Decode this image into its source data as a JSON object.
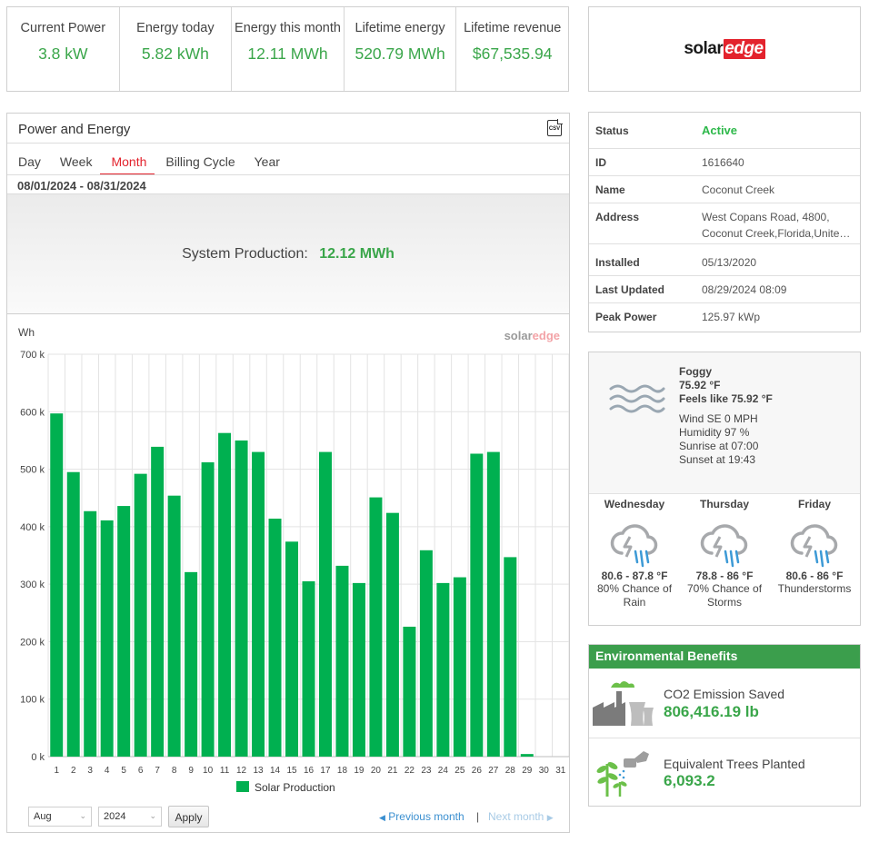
{
  "kpis": [
    {
      "label": "Current Power",
      "value": "3.8 kW"
    },
    {
      "label": "Energy today",
      "value": "5.82 kWh"
    },
    {
      "label": "Energy this month",
      "value": "12.11 MWh"
    },
    {
      "label": "Lifetime energy",
      "value": "520.79 MWh"
    },
    {
      "label": "Lifetime revenue",
      "value": "$67,535.94"
    }
  ],
  "logo": {
    "part1": "solar",
    "part2": "edge"
  },
  "power_energy": {
    "title": "Power and Energy",
    "csv_label": "CSV",
    "tabs": [
      {
        "label": "Day",
        "active": false
      },
      {
        "label": "Week",
        "active": false
      },
      {
        "label": "Month",
        "active": true
      },
      {
        "label": "Billing Cycle",
        "active": false
      },
      {
        "label": "Year",
        "active": false
      }
    ],
    "date_range": "08/01/2024 - 08/31/2024",
    "production_label": "System Production:",
    "production_value": "12.12 MWh",
    "month_select": "Aug",
    "year_select": "2024",
    "apply_label": "Apply",
    "prev_label": "Previous month",
    "separator": "|",
    "next_label": "Next month"
  },
  "chart_data": {
    "type": "bar",
    "ylabel": "Wh",
    "ylim": [
      0,
      700000
    ],
    "yticks": [
      0,
      100000,
      200000,
      300000,
      400000,
      500000,
      600000,
      700000
    ],
    "ytick_labels": [
      "0 k",
      "100 k",
      "200 k",
      "300 k",
      "400 k",
      "500 k",
      "600 k",
      "700 k"
    ],
    "categories": [
      "1",
      "2",
      "3",
      "4",
      "5",
      "6",
      "7",
      "8",
      "9",
      "10",
      "11",
      "12",
      "13",
      "14",
      "15",
      "16",
      "17",
      "18",
      "19",
      "20",
      "21",
      "22",
      "23",
      "24",
      "25",
      "26",
      "27",
      "28",
      "29",
      "30",
      "31"
    ],
    "series": [
      {
        "name": "Solar Production",
        "color": "#00b050",
        "values": [
          597000,
          495000,
          427000,
          411000,
          436000,
          492000,
          539000,
          454000,
          321000,
          512000,
          563000,
          550000,
          530000,
          414000,
          374000,
          305000,
          530000,
          332000,
          302000,
          451000,
          424000,
          226000,
          359000,
          302000,
          312000,
          527000,
          530000,
          347000,
          4500,
          0,
          0
        ]
      }
    ],
    "grid": true,
    "legend": "bottom-center",
    "watermark": {
      "part1": "solar",
      "part2": "edge"
    }
  },
  "site_info": [
    {
      "key": "Status",
      "value": "Active"
    },
    {
      "key": "ID",
      "value": "1616640"
    },
    {
      "key": "Name",
      "value": "Coconut Creek"
    },
    {
      "key": "Address",
      "value": "West Copans Road, 4800,",
      "value2": "Coconut Creek,Florida,Unite…"
    },
    {
      "key": "Installed",
      "value": "05/13/2020"
    },
    {
      "key": "Last Updated",
      "value": "08/29/2024 08:09"
    },
    {
      "key": "Peak Power",
      "value": "125.97 kWp"
    }
  ],
  "weather": {
    "icon": "fog-icon",
    "condition": "Foggy",
    "temp": "75.92 °F",
    "feels_like": "Feels like 75.92 °F",
    "wind": "Wind SE 0 MPH",
    "humidity": "Humidity 97 %",
    "sunrise": "Sunrise at 07:00",
    "sunset": "Sunset at 19:43",
    "forecast": [
      {
        "day": "Wednesday",
        "icon": "thunder-rain-icon",
        "temp": "80.6 - 87.8 °F",
        "desc1": "80% Chance of",
        "desc2": "Rain"
      },
      {
        "day": "Thursday",
        "icon": "thunder-rain-icon",
        "temp": "78.8 - 86 °F",
        "desc1": "70% Chance of",
        "desc2": "Storms"
      },
      {
        "day": "Friday",
        "icon": "thunder-rain-icon",
        "temp": "80.6 - 86 °F",
        "desc1": "Thunderstorms",
        "desc2": ""
      }
    ]
  },
  "env": {
    "title": "Environmental Benefits",
    "co2_label": "CO2 Emission Saved",
    "co2_value": "806,416.19 lb",
    "trees_label": "Equivalent Trees Planted",
    "trees_value": "6,093.2"
  }
}
